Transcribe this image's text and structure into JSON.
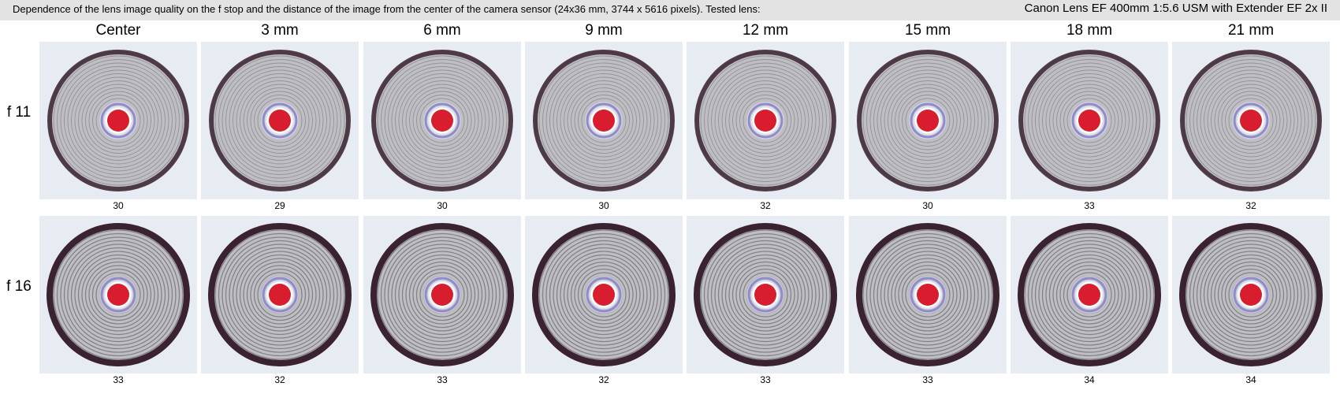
{
  "header": {
    "description": "Dependence of the lens image quality on the f stop and the distance of the image from the center of the camera sensor (24x36 mm, 3744 x 5616 pixels).  Tested lens:",
    "lens": "Canon Lens EF 400mm 1:5.6 USM with Extender EF 2x II"
  },
  "columns": [
    "Center",
    "3 mm",
    "6 mm",
    "9 mm",
    "12 mm",
    "15 mm",
    "18 mm",
    "21 mm"
  ],
  "rows": [
    {
      "label": "f 11",
      "scores": [
        "30",
        "29",
        "30",
        "30",
        "32",
        "30",
        "33",
        "32"
      ]
    },
    {
      "label": "f 16",
      "scores": [
        "33",
        "32",
        "33",
        "32",
        "33",
        "33",
        "34",
        "34"
      ]
    }
  ],
  "colors": {
    "target_face": "#bfbfc3",
    "ring_line": "#6d6d74",
    "outer_ring": "#3a2230",
    "center_dot": "#d81e2e",
    "halo": "#8e8bd0",
    "cell_background": "#e6ecf2"
  }
}
